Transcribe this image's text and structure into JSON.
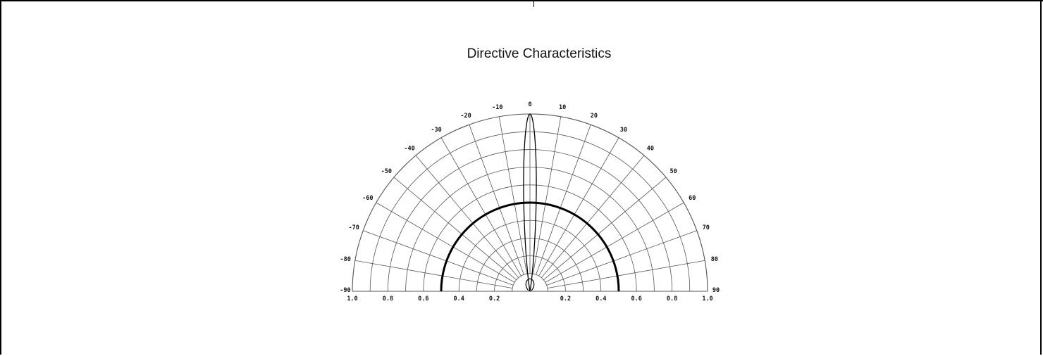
{
  "chart_data": {
    "type": "polar",
    "title": "Directive Characteristics",
    "angle_range": [
      -90,
      90
    ],
    "angle_step": 10,
    "angle_ticks": [
      -90,
      -80,
      -70,
      -60,
      -50,
      -40,
      -30,
      -20,
      -10,
      0,
      10,
      20,
      30,
      40,
      50,
      60,
      70,
      80,
      90
    ],
    "radius_range": [
      0,
      1.0
    ],
    "radius_ticks_left": [
      "1.0",
      "0.8",
      "0.6",
      "0.4",
      "0.2"
    ],
    "radius_ticks_right": [
      "0.2",
      "0.4",
      "0.6",
      "0.8",
      "1.0"
    ],
    "grid_rings": [
      0.1,
      0.2,
      0.3,
      0.4,
      0.5,
      0.6,
      0.7,
      0.8,
      0.9,
      1.0
    ],
    "series": [
      {
        "kind": "beam",
        "beamwidth_deg": 8,
        "peak": 1.0
      },
      {
        "kind": "circle",
        "radius": 0.5
      },
      {
        "kind": "small_lobe",
        "peak": 0.07
      }
    ]
  }
}
